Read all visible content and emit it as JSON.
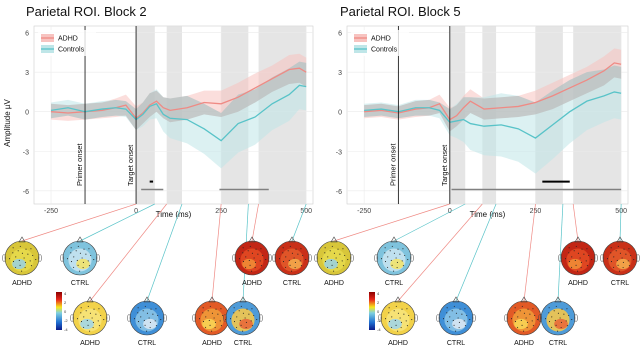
{
  "figure": {
    "y_axis_label": "Amplitude µV",
    "x_axis_label": "Time (ms)",
    "group_labels": [
      "ADHD",
      "CTRL"
    ]
  },
  "colors": {
    "adhd": "#ef8a84",
    "adhd_band": "#f7c3c0",
    "controls": "#58c3c8",
    "controls_band": "#bfe6e8",
    "shade": "#dcdcdc",
    "ci_band": "#9e9e9e",
    "significance_bar": "#808080",
    "highlight_bar": "#000000"
  },
  "chart_data": [
    {
      "type": "line",
      "title": "Parietal ROI. Block 2",
      "xlabel": "Time (ms)",
      "ylabel": "Amplitude µV",
      "xlim": [
        -300,
        520
      ],
      "ylim": [
        -7,
        6.5
      ],
      "x_ticks": [
        -250,
        0,
        250,
        500
      ],
      "x_tick_labels": [
        "-250",
        "0",
        "250",
        "500"
      ],
      "y_ticks": [
        -6,
        -3,
        0,
        3,
        6
      ],
      "y_tick_labels": [
        "-6",
        "-3",
        "0",
        "3",
        "6"
      ],
      "legend": "top-left",
      "grid": true,
      "vlines": [
        {
          "x": -150,
          "label": "Primer onset"
        },
        {
          "x": 0,
          "label": "Target onset"
        }
      ],
      "shaded_windows": [
        [
          0,
          55
        ],
        [
          90,
          135
        ],
        [
          250,
          330
        ],
        [
          360,
          500
        ]
      ],
      "x": [
        -250,
        -200,
        -150,
        -100,
        -60,
        -30,
        0,
        20,
        40,
        60,
        80,
        100,
        150,
        200,
        250,
        300,
        350,
        400,
        450,
        480,
        500
      ],
      "series": [
        {
          "name": "ADHD",
          "values": [
            0,
            -0.1,
            0,
            0.1,
            0.3,
            0.5,
            -0.5,
            -0.1,
            0.5,
            0.8,
            0.3,
            0.1,
            0.3,
            0.7,
            0.6,
            1.1,
            1.8,
            2.5,
            3.2,
            3.3,
            3.0
          ],
          "ci_lower": [
            -0.6,
            -0.7,
            -0.6,
            -0.5,
            -0.4,
            -0.3,
            -1.4,
            -0.9,
            -0.4,
            0,
            -0.5,
            -0.8,
            -0.6,
            -0.2,
            -0.4,
            0,
            0.7,
            1.5,
            2.1,
            2.2,
            1.9
          ],
          "ci_upper": [
            0.6,
            0.5,
            0.6,
            0.7,
            1.0,
            1.3,
            0.4,
            0.7,
            1.4,
            1.6,
            1.1,
            1.0,
            1.2,
            1.6,
            1.6,
            2.2,
            2.9,
            3.5,
            4.3,
            4.4,
            4.1
          ]
        },
        {
          "name": "Controls",
          "values": [
            0.1,
            0.3,
            0,
            0.2,
            0.3,
            0.2,
            -0.6,
            -0.2,
            0.4,
            0.6,
            -0.2,
            -0.5,
            -0.6,
            -1.3,
            -2.2,
            -0.9,
            -0.4,
            0.6,
            1.3,
            2.0,
            1.9
          ],
          "ci_lower": [
            -0.5,
            -0.3,
            -0.6,
            -0.4,
            -0.3,
            -0.4,
            -1.4,
            -1.1,
            -0.6,
            -0.5,
            -1.5,
            -2.0,
            -2.4,
            -3.2,
            -4.3,
            -3.1,
            -2.5,
            -1.4,
            -0.7,
            0.2,
            0.1
          ],
          "ci_upper": [
            0.7,
            0.9,
            0.6,
            0.8,
            0.9,
            0.8,
            0.2,
            0.7,
            1.4,
            1.7,
            1.1,
            1.0,
            1.2,
            0.6,
            -0.1,
            1.3,
            1.7,
            2.6,
            3.3,
            3.8,
            3.7
          ]
        }
      ],
      "significance_bars": [
        {
          "from": 15,
          "to": 80,
          "color": "gray"
        },
        {
          "from": 245,
          "to": 390,
          "color": "gray"
        },
        {
          "from": 40,
          "to": 50,
          "color": "black"
        }
      ],
      "topomaps": [
        {
          "group": "ADHD",
          "label": "ADHD"
        },
        {
          "group": "CTRL",
          "label": "CTRL"
        },
        {
          "group": "ADHD",
          "label": "ADHD"
        },
        {
          "group": "CTRL",
          "label": "CTRL"
        },
        {
          "group": "ADHD",
          "label": "ADHD"
        },
        {
          "group": "CTRL",
          "label": "CTRL"
        },
        {
          "group": "ADHD",
          "label": "ADHD"
        },
        {
          "group": "CTRL",
          "label": "CTRL"
        }
      ],
      "colorbar_ticks": [
        "4",
        "2",
        "0",
        "-2",
        "-4"
      ]
    },
    {
      "type": "line",
      "title": "Parietal ROI. Block 5",
      "xlabel": "Time (ms)",
      "ylabel": "",
      "xlim": [
        -300,
        520
      ],
      "ylim": [
        -7,
        6.5
      ],
      "x_ticks": [
        -250,
        0,
        250,
        500
      ],
      "x_tick_labels": [
        "-250",
        "0",
        "250",
        "500"
      ],
      "y_ticks": [
        -6,
        -3,
        0,
        3,
        6
      ],
      "y_tick_labels": [
        "-6",
        "-3",
        "0",
        "3",
        "6"
      ],
      "legend": "top-left",
      "grid": true,
      "vlines": [
        {
          "x": -150,
          "label": "Primer onset"
        },
        {
          "x": 0,
          "label": "Target onset"
        }
      ],
      "shaded_windows": [
        [
          0,
          45
        ],
        [
          95,
          135
        ],
        [
          250,
          330
        ],
        [
          360,
          500
        ]
      ],
      "x": [
        -250,
        -200,
        -150,
        -100,
        -60,
        -30,
        0,
        20,
        40,
        60,
        100,
        150,
        200,
        250,
        300,
        350,
        400,
        450,
        480,
        500
      ],
      "series": [
        {
          "name": "ADHD",
          "values": [
            0,
            0.1,
            -0.1,
            0.2,
            0.3,
            0.6,
            -0.6,
            -0.3,
            0.3,
            0.8,
            0.2,
            0.3,
            0.4,
            0.7,
            1.2,
            1.8,
            2.4,
            3.1,
            3.7,
            3.6
          ],
          "ci_lower": [
            -0.5,
            -0.4,
            -0.6,
            -0.4,
            -0.3,
            -0.1,
            -1.5,
            -1.1,
            -0.6,
            -0.1,
            -0.6,
            -0.5,
            -0.4,
            -0.2,
            0.2,
            0.8,
            1.4,
            2.0,
            2.6,
            2.5
          ],
          "ci_upper": [
            0.5,
            0.6,
            0.4,
            0.8,
            0.9,
            1.3,
            0.3,
            0.5,
            1.2,
            1.7,
            1.0,
            1.1,
            1.2,
            1.6,
            2.2,
            2.8,
            3.4,
            4.2,
            4.8,
            4.7
          ]
        },
        {
          "name": "Controls",
          "values": [
            0.1,
            0.2,
            0,
            0.3,
            0.3,
            0.1,
            -0.8,
            -0.7,
            -0.6,
            -0.9,
            -1.1,
            -1.0,
            -1.3,
            -2.0,
            -1.0,
            0.0,
            0.8,
            1.2,
            1.5,
            1.4
          ],
          "ci_lower": [
            -0.4,
            -0.3,
            -0.5,
            -0.3,
            -0.3,
            -0.5,
            -1.8,
            -2.0,
            -2.3,
            -2.9,
            -3.3,
            -3.4,
            -3.8,
            -4.7,
            -3.6,
            -2.4,
            -1.4,
            -0.8,
            -0.5,
            -0.6
          ],
          "ci_upper": [
            0.6,
            0.7,
            0.5,
            0.9,
            0.9,
            0.7,
            0.2,
            0.6,
            1.1,
            1.1,
            1.1,
            1.4,
            1.2,
            0.7,
            1.6,
            2.4,
            3.0,
            3.2,
            3.5,
            3.4
          ]
        }
      ],
      "significance_bars": [
        {
          "from": 5,
          "to": 500,
          "color": "gray"
        },
        {
          "from": 270,
          "to": 350,
          "color": "black"
        }
      ],
      "topomaps": [
        {
          "group": "ADHD",
          "label": "ADHD"
        },
        {
          "group": "CTRL",
          "label": "CTRL"
        },
        {
          "group": "ADHD",
          "label": "ADHD"
        },
        {
          "group": "CTRL",
          "label": "CTRL"
        },
        {
          "group": "ADHD",
          "label": "ADHD"
        },
        {
          "group": "CTRL",
          "label": "CTRL"
        },
        {
          "group": "ADHD",
          "label": "ADHD"
        },
        {
          "group": "CTRL",
          "label": "CTRL"
        }
      ],
      "colorbar_ticks": [
        "4",
        "2",
        "0",
        "-2",
        "-4"
      ]
    }
  ]
}
